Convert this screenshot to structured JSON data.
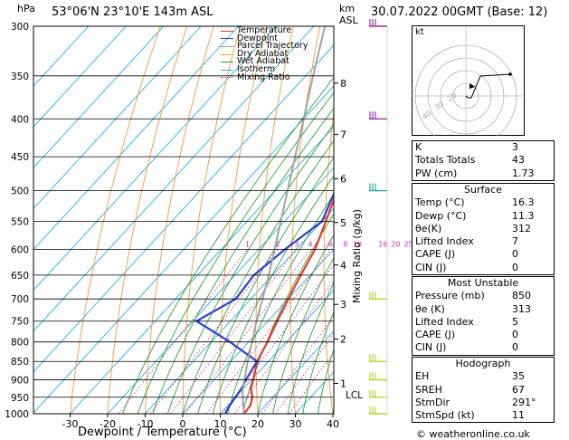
{
  "header": {
    "hpa_unit": "hPa",
    "location": "53°06'N  23°10'E  143m  ASL",
    "km_unit": "km",
    "asl_unit": "ASL",
    "datetime": "30.07.2022  00GMT  (Base: 12)"
  },
  "legend": [
    {
      "name": "Temperature",
      "color": "#e8382d"
    },
    {
      "name": "Dewpoint",
      "color": "#2e3fd1"
    },
    {
      "name": "Parcel Trajectory",
      "color": "#a3a3a3"
    },
    {
      "name": "Dry Adiabat",
      "color": "#f39a39"
    },
    {
      "name": "Wet Adiabat",
      "color": "#2aa63c"
    },
    {
      "name": "Isotherm",
      "color": "#22b2e3"
    },
    {
      "name": "Mixing Ratio",
      "color": "#d92a9e"
    }
  ],
  "chart_data": {
    "type": "line",
    "xlabel": "Dewpoint / Temperature (°C)",
    "ylabel_right": "Mixing Ratio (g/kg)",
    "pressure_levels": [
      300,
      350,
      400,
      450,
      500,
      550,
      600,
      650,
      700,
      750,
      800,
      850,
      900,
      950,
      1000
    ],
    "x_ticks": [
      -30,
      -20,
      -10,
      0,
      10,
      20,
      30,
      40
    ],
    "x_range": [
      -40,
      40
    ],
    "km_ticks": [
      {
        "label": "8",
        "p": 358
      },
      {
        "label": "7",
        "p": 420
      },
      {
        "label": "6",
        "p": 482
      },
      {
        "label": "5",
        "p": 552
      },
      {
        "label": "4",
        "p": 630
      },
      {
        "label": "3",
        "p": 712
      },
      {
        "label": "2",
        "p": 793
      },
      {
        "label": "1",
        "p": 910
      }
    ],
    "lcl": {
      "label": "LCL",
      "p": 930
    },
    "mixing_ratio_labels": [
      "1",
      "2",
      "3",
      "4",
      "6",
      "8",
      "10",
      "16",
      "20",
      "25"
    ],
    "series": [
      {
        "name": "Temperature",
        "points": [
          [
            1000,
            16.3
          ],
          [
            975,
            16
          ],
          [
            950,
            14.5
          ],
          [
            925,
            12
          ],
          [
            900,
            10.5
          ],
          [
            850,
            7
          ],
          [
            800,
            5
          ],
          [
            750,
            2.5
          ],
          [
            700,
            0
          ],
          [
            650,
            -2.5
          ],
          [
            600,
            -5
          ],
          [
            550,
            -9
          ],
          [
            500,
            -13.5
          ],
          [
            450,
            -18
          ],
          [
            400,
            -24.5
          ],
          [
            350,
            -32
          ],
          [
            300,
            -40
          ]
        ]
      },
      {
        "name": "Dewpoint",
        "points": [
          [
            1000,
            11.3
          ],
          [
            975,
            10.5
          ],
          [
            950,
            10
          ],
          [
            925,
            9.5
          ],
          [
            900,
            8.5
          ],
          [
            850,
            7
          ],
          [
            800,
            -5
          ],
          [
            750,
            -19
          ],
          [
            700,
            -14
          ],
          [
            650,
            -15
          ],
          [
            600,
            -13
          ],
          [
            550,
            -10
          ],
          [
            500,
            -14
          ],
          [
            450,
            -19
          ],
          [
            400,
            -27
          ],
          [
            350,
            -38
          ],
          [
            300,
            -45
          ]
        ]
      },
      {
        "name": "Parcel Trajectory",
        "points": [
          [
            1000,
            16.3
          ],
          [
            930,
            10.2
          ],
          [
            850,
            4.5
          ],
          [
            750,
            -3
          ],
          [
            650,
            -11
          ],
          [
            550,
            -21
          ],
          [
            450,
            -33
          ],
          [
            400,
            -40
          ],
          [
            350,
            -48
          ],
          [
            300,
            -57
          ]
        ]
      }
    ],
    "wind_barbs_levels": [
      300,
      400,
      500,
      700,
      850,
      900,
      950,
      1000
    ]
  },
  "hodograph": {
    "label": "kt",
    "ring_labels": [
      "40",
      "30",
      "20"
    ]
  },
  "indices": {
    "rows": [
      {
        "label": "K",
        "value": "3"
      },
      {
        "label": "Totals Totals",
        "value": "43"
      },
      {
        "label": "PW (cm)",
        "value": "1.73"
      }
    ]
  },
  "surface": {
    "title": "Surface",
    "rows": [
      {
        "label": "Temp (°C)",
        "value": "16.3"
      },
      {
        "label": "Dewp (°C)",
        "value": "11.3"
      },
      {
        "label": "θe(K)",
        "value": "312"
      },
      {
        "label": "Lifted Index",
        "value": "7"
      },
      {
        "label": "CAPE (J)",
        "value": "0"
      },
      {
        "label": "CIN (J)",
        "value": "0"
      }
    ]
  },
  "most_unstable": {
    "title": "Most Unstable",
    "rows": [
      {
        "label": "Pressure (mb)",
        "value": "850"
      },
      {
        "label": "θe (K)",
        "value": "313"
      },
      {
        "label": "Lifted Index",
        "value": "5"
      },
      {
        "label": "CAPE (J)",
        "value": "0"
      },
      {
        "label": "CIN (J)",
        "value": "0"
      }
    ]
  },
  "hodograph_table": {
    "title": "Hodograph",
    "rows": [
      {
        "label": "EH",
        "value": "35"
      },
      {
        "label": "SREH",
        "value": "67"
      },
      {
        "label": "StmDir",
        "value": "291°"
      },
      {
        "label": "StmSpd (kt)",
        "value": "11"
      }
    ]
  },
  "footer": {
    "copyright": "© weatheronline.co.uk"
  }
}
